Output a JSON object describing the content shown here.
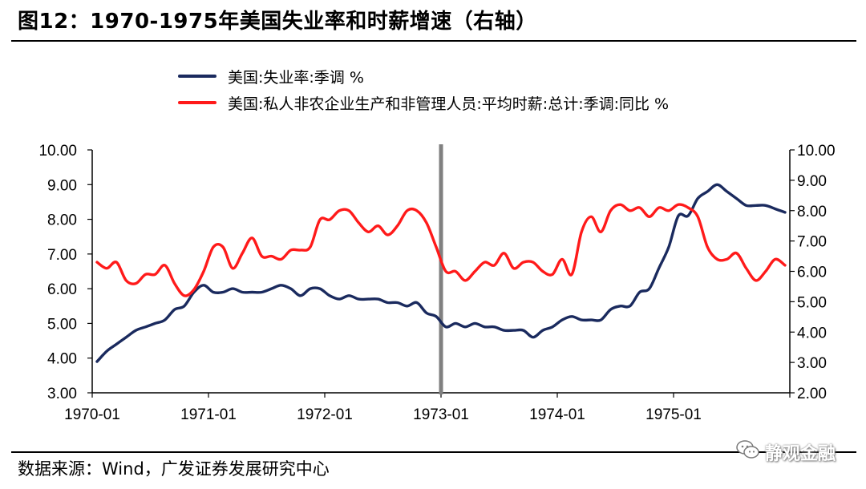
{
  "title": "图12：1970-1975年美国失业率和时薪增速（右轴）",
  "source": "数据来源：Wind，广发证券发展研究中心",
  "watermark": "静观金融",
  "colors": {
    "unemployment": "#1a2a5e",
    "wage": "#ff1a1a",
    "divider": "#808080",
    "axis": "#000000"
  },
  "chart_data": {
    "type": "line",
    "legend_placement": "top-left",
    "grid": false,
    "x_ticks": [
      "1970-01",
      "1971-01",
      "1972-01",
      "1973-01",
      "1974-01",
      "1975-01"
    ],
    "x_range": [
      "1970-01",
      "1975-12"
    ],
    "y_left": {
      "ylim": [
        3.0,
        10.0
      ],
      "ticks": [
        "3.00",
        "4.00",
        "5.00",
        "6.00",
        "7.00",
        "8.00",
        "9.00",
        "10.00"
      ]
    },
    "y_right": {
      "ylim": [
        2.0,
        10.0
      ],
      "ticks": [
        "2.00",
        "3.00",
        "4.00",
        "5.00",
        "6.00",
        "7.00",
        "8.00",
        "9.00",
        "10.00"
      ]
    },
    "vertical_marker": "1973-01",
    "series": [
      {
        "name": "美国:失业率:季调 %",
        "axis": "left",
        "values": [
          3.9,
          4.2,
          4.4,
          4.6,
          4.8,
          4.9,
          5.0,
          5.1,
          5.4,
          5.5,
          5.9,
          6.1,
          5.9,
          5.9,
          6.0,
          5.9,
          5.9,
          5.9,
          6.0,
          6.1,
          6.0,
          5.8,
          6.0,
          6.0,
          5.8,
          5.7,
          5.8,
          5.7,
          5.7,
          5.7,
          5.6,
          5.6,
          5.5,
          5.6,
          5.3,
          5.2,
          4.9,
          5.0,
          4.9,
          5.0,
          4.9,
          4.9,
          4.8,
          4.8,
          4.8,
          4.6,
          4.8,
          4.9,
          5.1,
          5.2,
          5.1,
          5.1,
          5.1,
          5.4,
          5.5,
          5.5,
          5.9,
          6.0,
          6.6,
          7.2,
          8.1,
          8.1,
          8.6,
          8.8,
          9.0,
          8.8,
          8.6,
          8.4,
          8.4,
          8.4,
          8.3,
          8.2
        ]
      },
      {
        "name": "美国:私人非农企业生产和非管理人员:平均时薪:总计:季调:同比 %",
        "axis": "right",
        "values": [
          6.3,
          6.1,
          6.3,
          5.7,
          5.6,
          5.9,
          5.9,
          6.2,
          5.6,
          5.2,
          5.4,
          6.0,
          6.8,
          6.8,
          6.1,
          6.6,
          7.1,
          6.5,
          6.5,
          6.4,
          6.7,
          6.7,
          6.8,
          7.7,
          7.7,
          8.0,
          8.0,
          7.6,
          7.3,
          7.5,
          7.2,
          7.5,
          8.0,
          8.0,
          7.6,
          6.8,
          6.0,
          6.0,
          5.7,
          6.0,
          6.3,
          6.2,
          6.6,
          6.1,
          6.3,
          6.3,
          6.0,
          5.9,
          6.4,
          5.9,
          7.3,
          7.8,
          7.3,
          8.0,
          8.2,
          8.0,
          8.1,
          7.8,
          8.1,
          8.0,
          8.2,
          8.1,
          7.8,
          6.8,
          6.4,
          6.4,
          6.6,
          6.1,
          5.7,
          6.0,
          6.4,
          6.2
        ]
      }
    ]
  }
}
